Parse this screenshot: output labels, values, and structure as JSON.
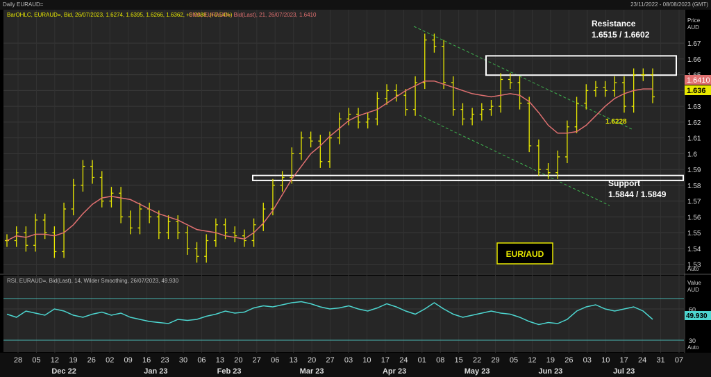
{
  "window": {
    "title": "Daily EURAUD=",
    "date_range": "23/11/2022 - 08/08/2023 (GMT)"
  },
  "price_panel": {
    "legend_ohlc": "BarOHLC, EURAUD=, Bid, 26/07/2023, 1.6274, 1.6395, 1.6266, 1.6362, +0.0088, (+0.54%)",
    "legend_sma": "SMA, EURAUD=, Bid(Last), 21, 26/07/2023, 1.6410",
    "axis_title": "Price",
    "axis_unit": "AUD",
    "auto_label": "Auto",
    "last_sma_tag": "1.6410",
    "last_price_tag": "1.636",
    "ohlc_color": "#e8e800",
    "sma_color": "#e07070"
  },
  "rsi_panel": {
    "legend": "RSI, EURAUD=, Bid(Last), 14, Wilder Smoothing, 26/07/2023, 49.930",
    "axis_title": "Value",
    "axis_unit": "AUD",
    "auto_label": "Auto",
    "last_tag": "49.930",
    "line_color": "#4dd6d0"
  },
  "annotations": {
    "resistance_title": "Resistance",
    "resistance_values": "1.6515 / 1.6602",
    "support_title": "Support",
    "support_values": "1.5844 / 1.5849",
    "level_label": "1.6228",
    "pair_label": "EUR/AUD"
  },
  "x_axis": {
    "day_labels": [
      "28",
      "05",
      "12",
      "19",
      "26",
      "02",
      "09",
      "16",
      "23",
      "30",
      "06",
      "13",
      "20",
      "27",
      "06",
      "13",
      "20",
      "27",
      "03",
      "10",
      "17",
      "24",
      "01",
      "08",
      "15",
      "22",
      "29",
      "05",
      "12",
      "19",
      "26",
      "03",
      "10",
      "17",
      "24",
      "31",
      "07"
    ],
    "month_labels": [
      "Dec 22",
      "Jan 23",
      "Feb 23",
      "Mar 23",
      "Apr 23",
      "May 23",
      "Jun 23",
      "Jul 23"
    ]
  },
  "chart_data": [
    {
      "type": "line",
      "series": [
        {
          "name": "BarOHLC, EURAUD=, Bid",
          "values": [
            1.545,
            1.55,
            1.542,
            1.558,
            1.55,
            1.538,
            1.565,
            1.58,
            1.592,
            1.585,
            1.57,
            1.575,
            1.56,
            1.553,
            1.565,
            1.56,
            1.55,
            1.557,
            1.55,
            1.54,
            1.535,
            1.545,
            1.555,
            1.55,
            1.548,
            1.545,
            1.555,
            1.565,
            1.58,
            1.585,
            1.6,
            1.61,
            1.608,
            1.595,
            1.61,
            1.622,
            1.625,
            1.62,
            1.622,
            1.635,
            1.64,
            1.637,
            1.628,
            1.645,
            1.672,
            1.668,
            1.645,
            1.628,
            1.622,
            1.625,
            1.628,
            1.63,
            1.647,
            1.645,
            1.632,
            1.605,
            1.59,
            1.588,
            1.598,
            1.617,
            1.632,
            1.64,
            1.642,
            1.64,
            1.645,
            1.63,
            1.65,
            1.65,
            1.636
          ]
        },
        {
          "name": "SMA, EURAUD=, Bid(Last), 21",
          "values": [
            1.545,
            1.548,
            1.547,
            1.549,
            1.549,
            1.548,
            1.55,
            1.555,
            1.562,
            1.568,
            1.572,
            1.573,
            1.572,
            1.571,
            1.568,
            1.565,
            1.562,
            1.56,
            1.558,
            1.555,
            1.552,
            1.551,
            1.55,
            1.548,
            1.547,
            1.546,
            1.55,
            1.556,
            1.564,
            1.574,
            1.584,
            1.592,
            1.6,
            1.605,
            1.611,
            1.616,
            1.621,
            1.624,
            1.626,
            1.628,
            1.632,
            1.636,
            1.64,
            1.643,
            1.646,
            1.646,
            1.644,
            1.642,
            1.64,
            1.638,
            1.637,
            1.636,
            1.637,
            1.638,
            1.637,
            1.633,
            1.626,
            1.618,
            1.613,
            1.613,
            1.614,
            1.618,
            1.624,
            1.63,
            1.635,
            1.638,
            1.64,
            1.641,
            1.641
          ]
        }
      ],
      "ylim": [
        1.525,
        1.685
      ],
      "yticks": [
        1.53,
        1.54,
        1.55,
        1.56,
        1.57,
        1.58,
        1.59,
        1.6,
        1.61,
        1.62,
        1.63,
        1.64,
        1.65,
        1.66,
        1.67
      ],
      "ytick_labels": [
        "1.53",
        "1.54",
        "1.55",
        "1.56",
        "1.57",
        "1.58",
        "1.59",
        "1.6",
        "1.61",
        "1.62",
        "1.63",
        "1.64",
        "1.65",
        "1.66",
        "1.67"
      ],
      "resistance_zone": [
        1.6515,
        1.6602
      ],
      "support_zone": [
        1.5844,
        1.5849
      ],
      "grid": true
    },
    {
      "type": "line",
      "series": [
        {
          "name": "RSI, EURAUD=, Bid(Last), 14, Wilder Smoothing",
          "values": [
            55,
            52,
            58,
            56,
            54,
            60,
            58,
            54,
            52,
            55,
            57,
            54,
            56,
            52,
            50,
            48,
            47,
            46,
            50,
            49,
            50,
            53,
            55,
            58,
            56,
            57,
            61,
            63,
            62,
            64,
            66,
            67,
            65,
            62,
            60,
            61,
            63,
            60,
            58,
            61,
            65,
            62,
            58,
            55,
            60,
            66,
            60,
            55,
            52,
            54,
            56,
            58,
            56,
            55,
            52,
            48,
            45,
            47,
            46,
            50,
            58,
            62,
            64,
            60,
            58,
            60,
            62,
            58,
            50
          ]
        }
      ],
      "ylim": [
        20,
        80
      ],
      "yticks": [
        30,
        60
      ],
      "ytick_labels": [
        "30",
        "60"
      ],
      "reference_lines": [
        30,
        70
      ],
      "grid": true
    }
  ]
}
